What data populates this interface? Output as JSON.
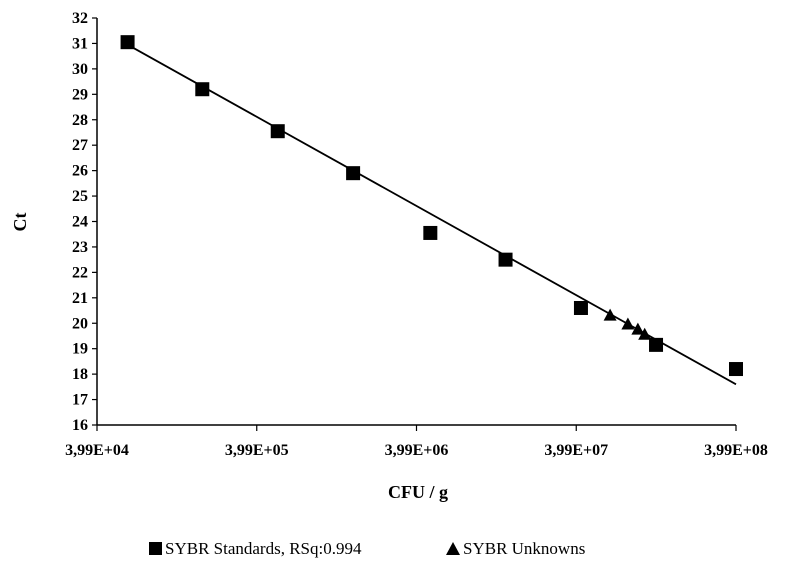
{
  "chart_data": {
    "type": "scatter",
    "xlabel": "CFU / g",
    "ylabel": "Ct",
    "x_scale": "log",
    "xlim": [
      39900,
      399000000
    ],
    "ylim": [
      16,
      32
    ],
    "x_tick_values": [
      39900,
      399000,
      3990000,
      39900000,
      399000000
    ],
    "x_tick_labels": [
      "3,99E+04",
      "3,99E+05",
      "3,99E+06",
      "3,99E+07",
      "3,99E+08"
    ],
    "y_ticks": [
      16,
      17,
      18,
      19,
      20,
      21,
      22,
      23,
      24,
      25,
      26,
      27,
      28,
      29,
      30,
      31,
      32
    ],
    "grid": false,
    "legend_position": "bottom",
    "series": [
      {
        "name": "SYBR Standards, RSq:0.994",
        "marker": "square",
        "color": "#000000",
        "x": [
          62000,
          182000,
          540000,
          1600000,
          4870000,
          14400000,
          42700000,
          126000000,
          399000000
        ],
        "y": [
          31.05,
          29.2,
          27.55,
          25.9,
          23.55,
          22.5,
          20.6,
          19.15,
          18.2
        ]
      },
      {
        "name": "SYBR Unknowns",
        "marker": "triangle",
        "color": "#000000",
        "x": [
          65000000,
          84000000,
          97000000,
          107000000
        ],
        "y": [
          20.3,
          19.95,
          19.75,
          19.55
        ]
      }
    ],
    "trendline": {
      "color": "#000000",
      "x": [
        62000,
        399000000
      ],
      "y": [
        30.95,
        17.6
      ]
    }
  }
}
